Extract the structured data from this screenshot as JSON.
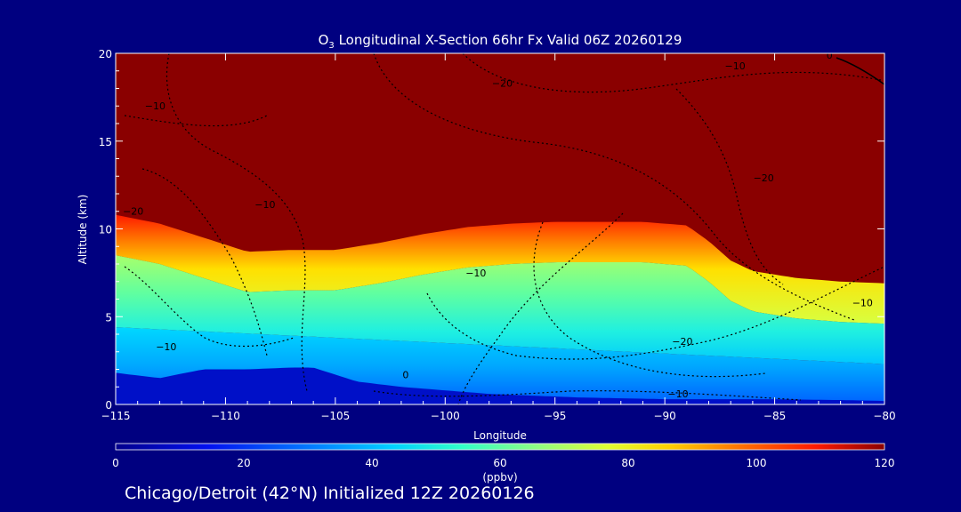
{
  "chart_data": {
    "type": "heatmap",
    "title_prefix": "O",
    "title_subscript": "3",
    "title_rest": " Longitudinal X-Section 66hr  Fx Valid 06Z 20260129",
    "xlabel": "Longitude",
    "ylabel": "Altitude (km)",
    "xlim": [
      -115,
      -80
    ],
    "ylim": [
      0,
      20
    ],
    "x_ticks": [
      -115,
      -110,
      -105,
      -100,
      -95,
      -90,
      -85,
      -80
    ],
    "x_tick_labels": [
      "−115",
      "−110",
      "−105",
      "−100",
      "−95",
      "−90",
      "−85",
      "−80"
    ],
    "y_ticks": [
      0,
      5,
      10,
      15,
      20
    ],
    "y_tick_labels": [
      "0",
      "5",
      "10",
      "15",
      "20"
    ],
    "colorbar": {
      "label": "(ppbv)",
      "range": [
        0,
        120
      ],
      "ticks": [
        0,
        20,
        40,
        60,
        80,
        100,
        120
      ],
      "tick_labels": [
        "0",
        "20",
        "40",
        "60",
        "80",
        "100",
        "120"
      ]
    },
    "tropopause_km": {
      "lon": [
        -115,
        -113,
        -111,
        -109,
        -107,
        -105,
        -103,
        -101,
        -99,
        -97,
        -95,
        -93,
        -91,
        -89,
        -88,
        -87,
        -86,
        -84,
        -82,
        -80
      ],
      "alt": [
        10.8,
        10.3,
        9.5,
        8.7,
        8.8,
        8.8,
        9.2,
        9.7,
        10.1,
        10.3,
        10.4,
        10.4,
        10.4,
        10.2,
        9.3,
        8.2,
        7.6,
        7.2,
        7.0,
        6.9
      ]
    },
    "terrain_km": {
      "lon": [
        -115,
        -113,
        -111,
        -109,
        -107,
        -106,
        -105,
        -104,
        -102,
        -100,
        -98,
        -96,
        -94,
        -92,
        -90,
        -88,
        -85,
        -82,
        -80
      ],
      "alt": [
        1.8,
        1.5,
        2.0,
        2.0,
        2.1,
        2.1,
        1.7,
        1.3,
        1.0,
        0.8,
        0.6,
        0.5,
        0.4,
        0.35,
        0.3,
        0.3,
        0.3,
        0.25,
        0.2
      ]
    },
    "contour_labels": [
      {
        "text": "−10",
        "lon": -113.2,
        "alt": 16.8
      },
      {
        "text": "−20",
        "lon": -97.4,
        "alt": 18.1
      },
      {
        "text": "−10",
        "lon": -86.8,
        "alt": 19.1
      },
      {
        "text": "0",
        "lon": -82.5,
        "alt": 19.7
      },
      {
        "text": "−10",
        "lon": -108.2,
        "alt": 11.2
      },
      {
        "text": "−20",
        "lon": -114.2,
        "alt": 10.8
      },
      {
        "text": "−20",
        "lon": -85.5,
        "alt": 12.7
      },
      {
        "text": "−10",
        "lon": -98.6,
        "alt": 7.3
      },
      {
        "text": "−10",
        "lon": -112.7,
        "alt": 3.1
      },
      {
        "text": "−20",
        "lon": -89.2,
        "alt": 3.4
      },
      {
        "text": "−10",
        "lon": -81.0,
        "alt": 5.6
      },
      {
        "text": "0",
        "lon": -101.8,
        "alt": 1.5
      },
      {
        "text": "−10",
        "lon": -89.4,
        "alt": 0.4
      }
    ]
  },
  "footer": "Chicago/Detroit (42°N) Initialized 12Z 20260126"
}
